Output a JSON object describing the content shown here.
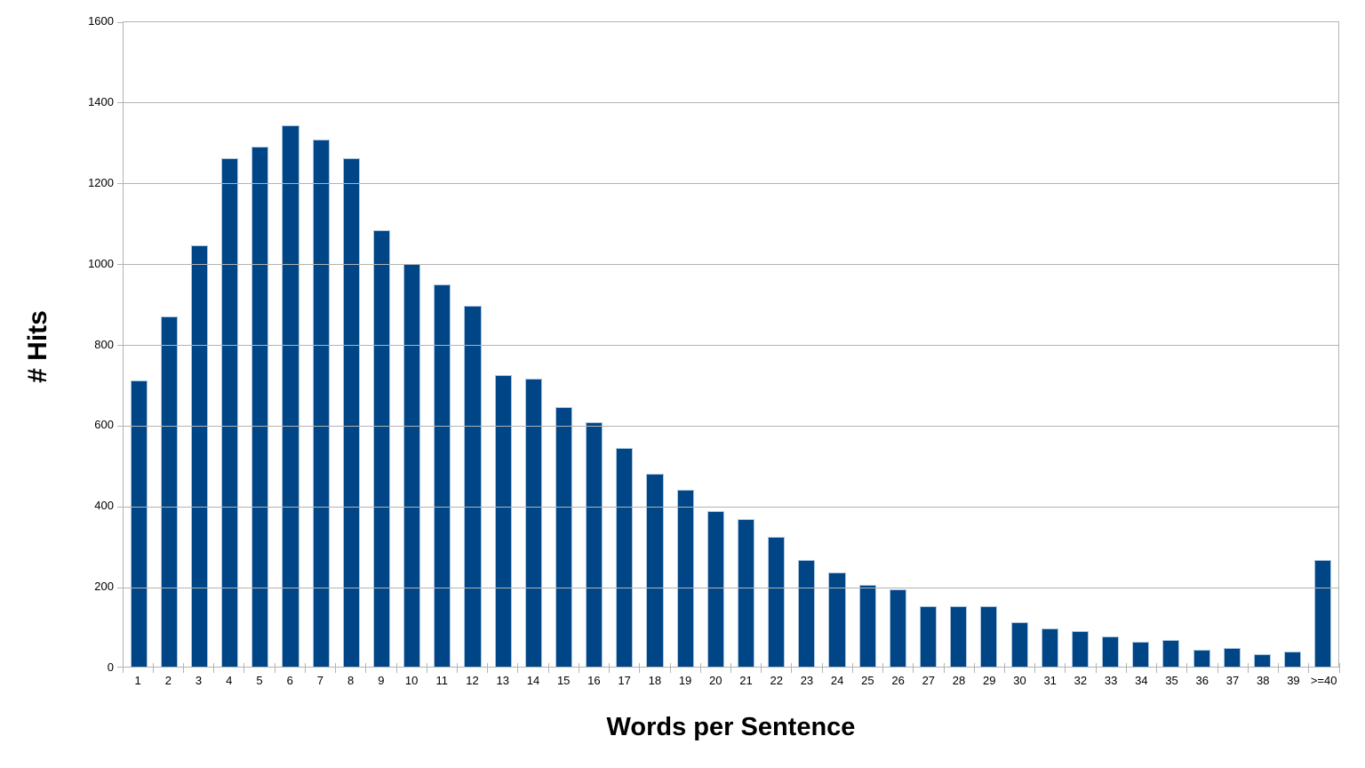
{
  "chart_data": {
    "type": "bar",
    "title": "",
    "xlabel": "Words per Sentence",
    "ylabel": "# Hits",
    "categories": [
      "1",
      "2",
      "3",
      "4",
      "5",
      "6",
      "7",
      "8",
      "9",
      "10",
      "11",
      "12",
      "13",
      "14",
      "15",
      "16",
      "17",
      "18",
      "19",
      "20",
      "21",
      "22",
      "23",
      "24",
      "25",
      "26",
      "27",
      "28",
      "29",
      "30",
      "31",
      "32",
      "33",
      "34",
      "35",
      "36",
      "37",
      "38",
      "39",
      ">=40"
    ],
    "values": [
      710,
      870,
      1045,
      1263,
      1291,
      1343,
      1309,
      1263,
      1083,
      1000,
      950,
      896,
      724,
      715,
      645,
      607,
      543,
      478,
      440,
      387,
      366,
      322,
      265,
      234,
      202,
      193,
      149,
      151,
      151,
      110,
      95,
      89,
      75,
      62,
      66,
      43,
      46,
      30,
      37,
      264
    ],
    "ylim": [
      0,
      1600
    ],
    "ytick_step": 200,
    "yticks": [
      0,
      200,
      400,
      600,
      800,
      1000,
      1200,
      1400,
      1600
    ],
    "grid": "horizontal",
    "legend": "none"
  },
  "colors": {
    "bar_fill": "#004586",
    "bar_border": "#aac4de",
    "gridline": "#b3b3b3",
    "axis": "#b3b3b3",
    "text": "#000000",
    "background": "#ffffff"
  }
}
